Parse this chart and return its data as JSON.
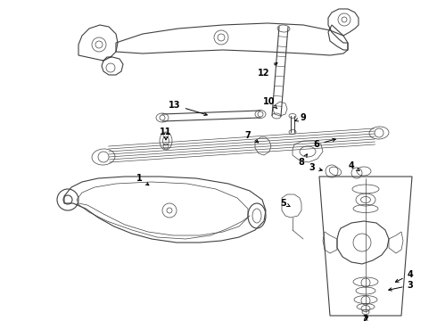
{
  "bg_color": "#ffffff",
  "line_color": "#404040",
  "fig_width": 4.9,
  "fig_height": 3.6,
  "dpi": 100
}
